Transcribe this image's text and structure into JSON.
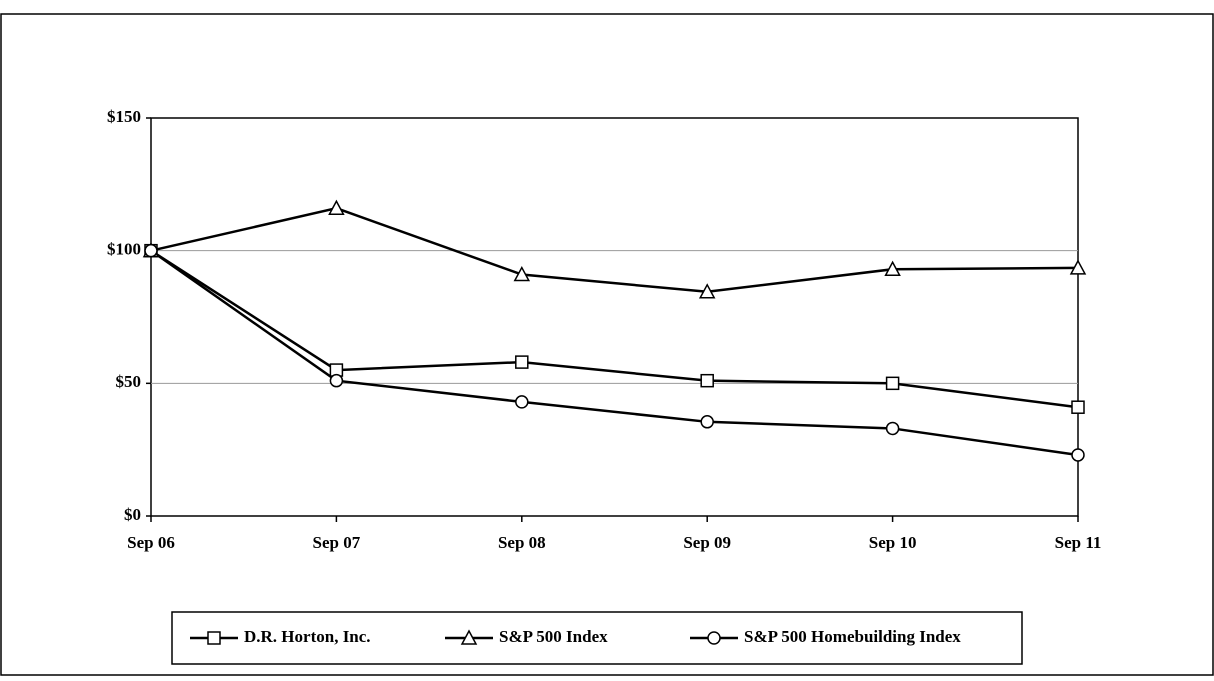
{
  "chart_data": {
    "type": "line",
    "categories": [
      "Sep 06",
      "Sep 07",
      "Sep 08",
      "Sep 09",
      "Sep 10",
      "Sep 11"
    ],
    "series": [
      {
        "name": "D.R. Horton, Inc.",
        "color": "#000000",
        "marker": "square",
        "values": [
          100,
          55,
          58,
          51,
          50,
          41
        ]
      },
      {
        "name": "S&P 500 Index",
        "color": "#000000",
        "marker": "triangle",
        "values": [
          100,
          116,
          91,
          84.5,
          93,
          93.5
        ]
      },
      {
        "name": "S&P 500 Homebuilding Index",
        "color": "#000000",
        "marker": "circle",
        "values": [
          100,
          51,
          43,
          35.5,
          33,
          23
        ]
      }
    ],
    "ylim": [
      0,
      150
    ],
    "yticks": [
      {
        "value": 0,
        "label": "$0"
      },
      {
        "value": 50,
        "label": "$50"
      },
      {
        "value": 100,
        "label": "$100"
      },
      {
        "value": 150,
        "label": "$150"
      }
    ],
    "grid": true,
    "legend": "bottom"
  }
}
